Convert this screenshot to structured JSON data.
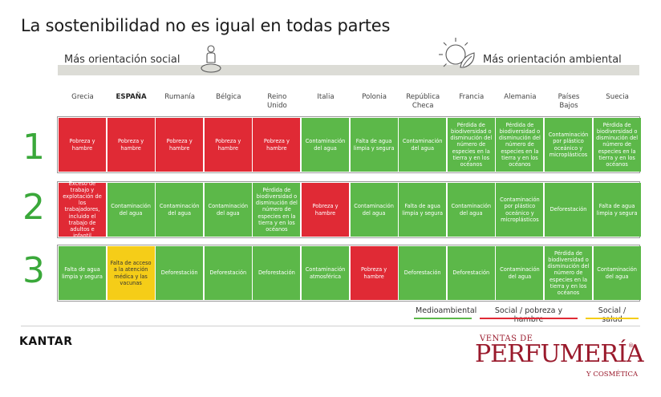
{
  "title": "La sostenibilidad no es igual en todas partes",
  "band": {
    "left_label": "Más orientación social",
    "right_label": "Más orientación ambiental"
  },
  "colors": {
    "medioambiental": "#5cb849",
    "social_pobreza": "#e02a35",
    "social_salud": "#f5cd18",
    "rank_number": "#3aa83a"
  },
  "icons": [
    "person-pin-icon",
    "sun-leaf-icon"
  ],
  "chart_data": {
    "type": "table",
    "countries": [
      "Grecia",
      "ESPAÑA",
      "Rumanía",
      "Bélgica",
      "Reino\nUnido",
      "Italia",
      "Polonia",
      "República\nCheca",
      "Francia",
      "Alemania",
      "Países\nBajos",
      "Suecia"
    ],
    "ranks": [
      "1",
      "2",
      "3"
    ],
    "rows": [
      [
        {
          "text": "Pobreza y hambre",
          "category": "soc"
        },
        {
          "text": "Pobreza y hambre",
          "category": "soc"
        },
        {
          "text": "Pobreza y hambre",
          "category": "soc"
        },
        {
          "text": "Pobreza y hambre",
          "category": "soc"
        },
        {
          "text": "Pobreza y hambre",
          "category": "soc"
        },
        {
          "text": "Contaminación del agua",
          "category": "env"
        },
        {
          "text": "Falta de agua limpia y segura",
          "category": "env"
        },
        {
          "text": "Contaminación del agua",
          "category": "env"
        },
        {
          "text": "Pérdida de biodiversidad o disminución del número de especies en la tierra y en los océanos",
          "category": "env"
        },
        {
          "text": "Pérdida de biodiversidad o disminución del número de especies en la tierra y en los océanos",
          "category": "env"
        },
        {
          "text": "Contaminación por plástico oceánico y microplásticos",
          "category": "env"
        },
        {
          "text": "Pérdida de biodiversidad o disminución del número de especies en la tierra y en los océanos",
          "category": "env"
        }
      ],
      [
        {
          "text": "Exceso de trabajo y explotación de los trabajadores, incluido el trabajo de adultos e infantil",
          "category": "soc"
        },
        {
          "text": "Contaminación del agua",
          "category": "env"
        },
        {
          "text": "Contaminación del agua",
          "category": "env"
        },
        {
          "text": "Contaminación del agua",
          "category": "env"
        },
        {
          "text": "Pérdida de biodiversidad o disminución del número de especies en la tierra y en los océanos",
          "category": "env"
        },
        {
          "text": "Pobreza y hambre",
          "category": "soc"
        },
        {
          "text": "Contaminación del agua",
          "category": "env"
        },
        {
          "text": "Falta de agua limpia y segura",
          "category": "env"
        },
        {
          "text": "Contaminación del agua",
          "category": "env"
        },
        {
          "text": "Contaminación por plástico oceánico y microplásticos",
          "category": "env"
        },
        {
          "text": "Deforestación",
          "category": "env"
        },
        {
          "text": "Falta de agua limpia y segura",
          "category": "env"
        }
      ],
      [
        {
          "text": "Falta de agua limpia y segura",
          "category": "env"
        },
        {
          "text": "Falta de acceso a la atención médica y las vacunas",
          "category": "hea"
        },
        {
          "text": "Deforestación",
          "category": "env"
        },
        {
          "text": "Deforestación",
          "category": "env"
        },
        {
          "text": "Deforestación",
          "category": "env"
        },
        {
          "text": "Contaminación atmosférica",
          "category": "env"
        },
        {
          "text": "Pobreza y hambre",
          "category": "soc"
        },
        {
          "text": "Deforestación",
          "category": "env"
        },
        {
          "text": "Deforestación",
          "category": "env"
        },
        {
          "text": "Contaminación del agua",
          "category": "env"
        },
        {
          "text": "Pérdida de biodiversidad o disminución del número de especies en la tierra y en los océanos",
          "category": "env"
        },
        {
          "text": "Contaminación del agua",
          "category": "env"
        }
      ]
    ],
    "legend": [
      {
        "label": "Medioambiental",
        "category": "env"
      },
      {
        "label": "Social / pobreza y hambre",
        "category": "soc"
      },
      {
        "label": "Social / salud",
        "category": "hea"
      }
    ]
  },
  "footer": {
    "kantar": "KANTAR",
    "logo_top": "VENTAS DE",
    "logo_main": "PERFUMERÍA",
    "logo_bottom": "Y COSMÉTICA",
    "logo_reg": "®"
  }
}
